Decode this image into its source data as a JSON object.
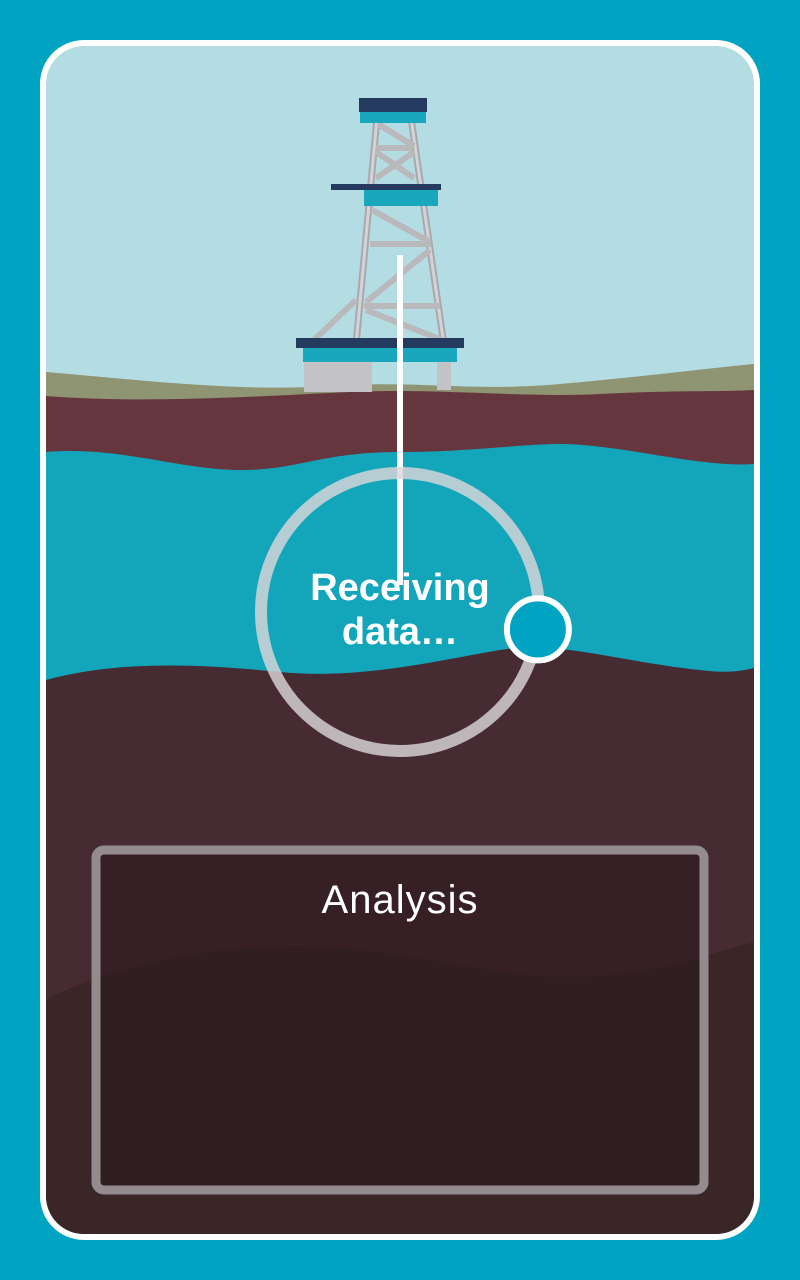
{
  "colors": {
    "background": "#00a3c2",
    "sky": "#b4dce3",
    "grass": "#8f9472",
    "topsoil": "#66363f",
    "reservoir": "#13a6bb",
    "deep_rock": "#472b33",
    "deepest_rock": "#3a2527",
    "panel_fill": "#2b1a1e",
    "panel_border": "#938b8e",
    "rig_steel": "#b9b9bc",
    "rig_platform_dark": "#243a5e",
    "rig_platform_accent": "#18a7bc",
    "progress_track": "#d9d6d8",
    "progress_knob": "#00a3c2"
  },
  "status": {
    "line1": "Receiving",
    "line2": "data…",
    "progress": 0.27
  },
  "analysis_panel": {
    "title": "Analysis"
  },
  "icons": {
    "rig": "drilling-rig-icon",
    "progress": "progress-ring-icon"
  }
}
